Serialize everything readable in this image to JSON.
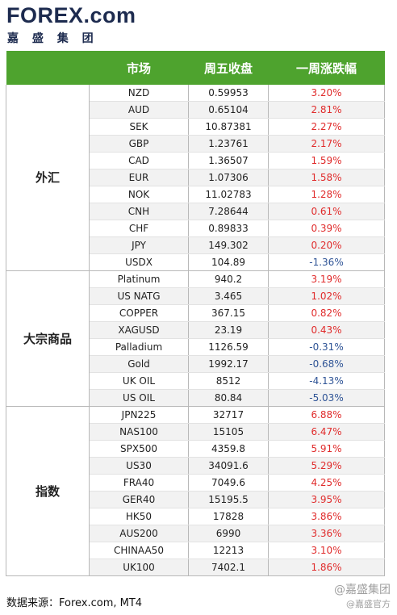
{
  "header": {
    "logo": "FOREX.com",
    "subtitle": "嘉 盛 集 团"
  },
  "table": {
    "columns": [
      "市场",
      "周五收盘",
      "一周涨跌幅"
    ],
    "up_color": "#e02b2b",
    "down_color": "#2f5496",
    "groups": [
      {
        "name": "外汇",
        "rows": [
          [
            "NZD",
            "0.59953",
            "3.20%"
          ],
          [
            "AUD",
            "0.65104",
            "2.81%"
          ],
          [
            "SEK",
            "10.87381",
            "2.27%"
          ],
          [
            "GBP",
            "1.23761",
            "2.17%"
          ],
          [
            "CAD",
            "1.36507",
            "1.59%"
          ],
          [
            "EUR",
            "1.07306",
            "1.58%"
          ],
          [
            "NOK",
            "11.02783",
            "1.28%"
          ],
          [
            "CNH",
            "7.28644",
            "0.61%"
          ],
          [
            "CHF",
            "0.89833",
            "0.39%"
          ],
          [
            "JPY",
            "149.302",
            "0.20%"
          ],
          [
            "USDX",
            "104.89",
            "-1.36%"
          ]
        ]
      },
      {
        "name": "大宗商品",
        "rows": [
          [
            "Platinum",
            "940.2",
            "3.19%"
          ],
          [
            "US NATG",
            "3.465",
            "1.02%"
          ],
          [
            "COPPER",
            "367.15",
            "0.82%"
          ],
          [
            "XAGUSD",
            "23.19",
            "0.43%"
          ],
          [
            "Palladium",
            "1126.59",
            "-0.31%"
          ],
          [
            "Gold",
            "1992.17",
            "-0.68%"
          ],
          [
            "UK OIL",
            "8512",
            "-4.13%"
          ],
          [
            "US OIL",
            "80.84",
            "-5.03%"
          ]
        ]
      },
      {
        "name": "指数",
        "rows": [
          [
            "JPN225",
            "32717",
            "6.88%"
          ],
          [
            "NAS100",
            "15105",
            "6.47%"
          ],
          [
            "SPX500",
            "4359.8",
            "5.91%"
          ],
          [
            "US30",
            "34091.6",
            "5.29%"
          ],
          [
            "FRA40",
            "7049.6",
            "4.25%"
          ],
          [
            "GER40",
            "15195.5",
            "3.95%"
          ],
          [
            "HK50",
            "17828",
            "3.86%"
          ],
          [
            "AUS200",
            "6990",
            "3.36%"
          ],
          [
            "CHINAA50",
            "12213",
            "3.10%"
          ],
          [
            "UK100",
            "7402.1",
            "1.86%"
          ]
        ]
      }
    ]
  },
  "footer": {
    "source": "数据来源：Forex.com, MT4",
    "watermark": [
      "@嘉盛集团",
      "@嘉盛官方"
    ]
  }
}
